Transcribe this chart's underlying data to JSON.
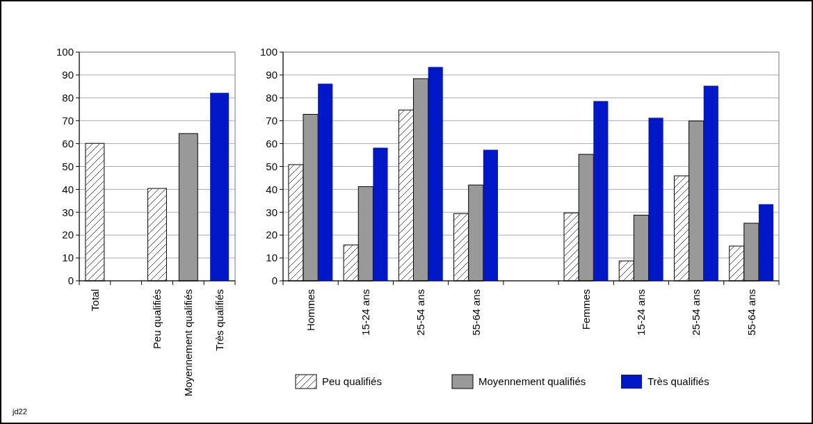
{
  "chart_data": [
    {
      "type": "bar",
      "categories": [
        "Total",
        null,
        "Peu qualifiés",
        "Moyennement qualifiés",
        "Très qualifiés"
      ],
      "values": [
        60.1,
        null,
        40.4,
        64.4,
        82.2
      ],
      "colors": [
        "#ffffff",
        null,
        "#ffffff",
        "#999999",
        "#0018c8"
      ],
      "ylim": [
        0,
        100
      ],
      "yticks": [
        0,
        10,
        20,
        30,
        40,
        50,
        60,
        70,
        80,
        90,
        100
      ],
      "grid": "y",
      "annotations": [
        "jd22"
      ]
    },
    {
      "type": "bar",
      "categories": [
        "Hommes",
        "15-24 ans",
        "25-54 ans",
        "55-64 ans",
        null,
        "Femmes",
        "15-24 ans",
        "25-54 ans",
        "55-64 ans"
      ],
      "series": [
        {
          "name": "Peu qualifiés",
          "color": "#ffffff",
          "values": [
            50.8,
            15.7,
            74.7,
            29.4,
            null,
            29.7,
            8.7,
            45.9,
            15.2
          ]
        },
        {
          "name": "Moyennement qualifiés",
          "color": "#999999",
          "values": [
            72.8,
            41.2,
            88.4,
            41.9,
            null,
            55.3,
            28.7,
            69.9,
            25.2
          ]
        },
        {
          "name": "Très qualifiés",
          "color": "#0018c8",
          "values": [
            86.2,
            58.2,
            93.5,
            57.3,
            null,
            78.6,
            71.3,
            85.3,
            33.5
          ]
        }
      ],
      "ylim": [
        0,
        100
      ],
      "yticks": [
        0,
        10,
        20,
        30,
        40,
        50,
        60,
        70,
        80,
        90,
        100
      ],
      "grid": "y",
      "legend": "bottom"
    }
  ]
}
